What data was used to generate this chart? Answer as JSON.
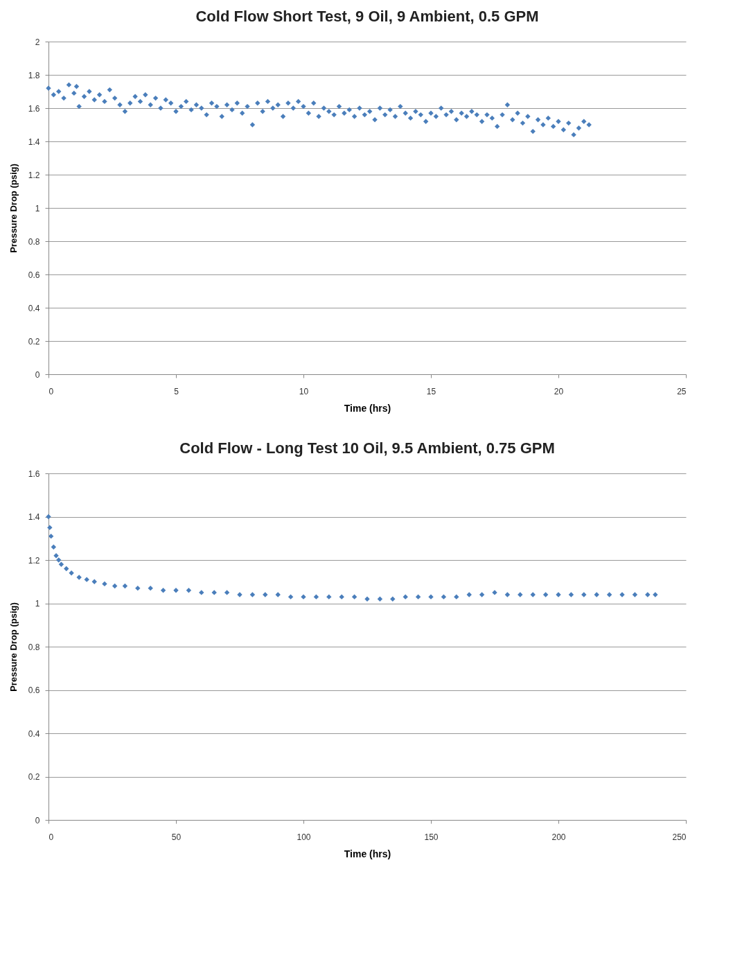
{
  "chart_data": [
    {
      "type": "scatter",
      "title": "Cold Flow Short Test, 9 Oil, 9 Ambient, 0.5 GPM",
      "xlabel": "Time (hrs)",
      "ylabel": "Pressure Drop (psig)",
      "xlim": [
        0,
        25
      ],
      "xticks": [
        0,
        5,
        10,
        15,
        20,
        25
      ],
      "ylim": [
        0,
        2
      ],
      "yticks": [
        0,
        0.2,
        0.4,
        0.6,
        0.8,
        1,
        1.2,
        1.4,
        1.6,
        1.8,
        2
      ],
      "grid": "y",
      "marker": "diamond",
      "series": [
        {
          "color": "#4a7ebb",
          "x": [
            0,
            0.2,
            0.4,
            0.6,
            0.8,
            1.0,
            1.2,
            1.1,
            1.4,
            1.6,
            1.8,
            2.0,
            2.2,
            2.4,
            2.6,
            2.8,
            3.0,
            3.2,
            3.4,
            3.6,
            3.8,
            4.0,
            4.2,
            4.4,
            4.6,
            4.8,
            5.0,
            5.2,
            5.4,
            5.6,
            5.8,
            6.0,
            6.2,
            6.4,
            6.6,
            6.8,
            7.0,
            7.2,
            7.4,
            7.6,
            7.8,
            8.0,
            8.2,
            8.4,
            8.6,
            8.8,
            9.0,
            9.2,
            9.4,
            9.6,
            9.8,
            10.0,
            10.2,
            10.4,
            10.6,
            10.8,
            11.0,
            11.2,
            11.4,
            11.6,
            11.8,
            12.0,
            12.2,
            12.4,
            12.6,
            12.8,
            13.0,
            13.2,
            13.4,
            13.6,
            13.8,
            14.0,
            14.2,
            14.4,
            14.6,
            14.8,
            15.0,
            15.2,
            15.4,
            15.6,
            15.8,
            16.0,
            16.2,
            16.4,
            16.6,
            16.8,
            17.0,
            17.2,
            17.4,
            17.6,
            17.8,
            18.0,
            18.2,
            18.4,
            18.6,
            18.8,
            19.0,
            19.2,
            19.4,
            19.6,
            19.8,
            20.0,
            20.2,
            20.4,
            20.6,
            20.8,
            21.0,
            21.2
          ],
          "values": [
            1.72,
            1.68,
            1.7,
            1.66,
            1.74,
            1.69,
            1.61,
            1.73,
            1.67,
            1.7,
            1.65,
            1.68,
            1.64,
            1.71,
            1.66,
            1.62,
            1.58,
            1.63,
            1.67,
            1.64,
            1.68,
            1.62,
            1.66,
            1.6,
            1.65,
            1.63,
            1.58,
            1.61,
            1.64,
            1.59,
            1.62,
            1.6,
            1.56,
            1.63,
            1.61,
            1.55,
            1.62,
            1.59,
            1.63,
            1.57,
            1.61,
            1.5,
            1.63,
            1.58,
            1.64,
            1.6,
            1.62,
            1.55,
            1.63,
            1.6,
            1.64,
            1.61,
            1.57,
            1.63,
            1.55,
            1.6,
            1.58,
            1.56,
            1.61,
            1.57,
            1.59,
            1.55,
            1.6,
            1.56,
            1.58,
            1.53,
            1.6,
            1.56,
            1.59,
            1.55,
            1.61,
            1.57,
            1.54,
            1.58,
            1.56,
            1.52,
            1.57,
            1.55,
            1.6,
            1.56,
            1.58,
            1.53,
            1.57,
            1.55,
            1.58,
            1.56,
            1.52,
            1.56,
            1.54,
            1.49,
            1.56,
            1.62,
            1.53,
            1.57,
            1.51,
            1.55,
            1.46,
            1.53,
            1.5,
            1.54,
            1.49,
            1.52,
            1.47,
            1.51,
            1.44,
            1.48,
            1.52,
            1.5
          ]
        }
      ]
    },
    {
      "type": "scatter",
      "title": "Cold Flow - Long Test 10 Oil, 9.5 Ambient, 0.75 GPM",
      "xlabel": "Time (hrs)",
      "ylabel": "Pressure Drop (psig)",
      "xlim": [
        0,
        250
      ],
      "xticks": [
        0,
        50,
        100,
        150,
        200,
        250
      ],
      "ylim": [
        0,
        1.6
      ],
      "yticks": [
        0,
        0.2,
        0.4,
        0.6,
        0.8,
        1,
        1.2,
        1.4,
        1.6
      ],
      "grid": "y",
      "marker": "diamond",
      "series": [
        {
          "color": "#4a7ebb",
          "x": [
            0,
            0.5,
            1,
            2,
            3,
            4,
            5,
            7,
            9,
            12,
            15,
            18,
            22,
            26,
            30,
            35,
            40,
            45,
            50,
            55,
            60,
            65,
            70,
            75,
            80,
            85,
            90,
            95,
            100,
            105,
            110,
            115,
            120,
            125,
            130,
            135,
            140,
            145,
            150,
            155,
            160,
            165,
            170,
            175,
            180,
            185,
            190,
            195,
            200,
            205,
            210,
            215,
            220,
            225,
            230,
            235,
            238
          ],
          "values": [
            1.4,
            1.35,
            1.31,
            1.26,
            1.22,
            1.2,
            1.18,
            1.16,
            1.14,
            1.12,
            1.11,
            1.1,
            1.09,
            1.08,
            1.08,
            1.07,
            1.07,
            1.06,
            1.06,
            1.06,
            1.05,
            1.05,
            1.05,
            1.04,
            1.04,
            1.04,
            1.04,
            1.03,
            1.03,
            1.03,
            1.03,
            1.03,
            1.03,
            1.02,
            1.02,
            1.02,
            1.03,
            1.03,
            1.03,
            1.03,
            1.03,
            1.04,
            1.04,
            1.05,
            1.04,
            1.04,
            1.04,
            1.04,
            1.04,
            1.04,
            1.04,
            1.04,
            1.04,
            1.04,
            1.04,
            1.04,
            1.04
          ]
        }
      ]
    }
  ]
}
